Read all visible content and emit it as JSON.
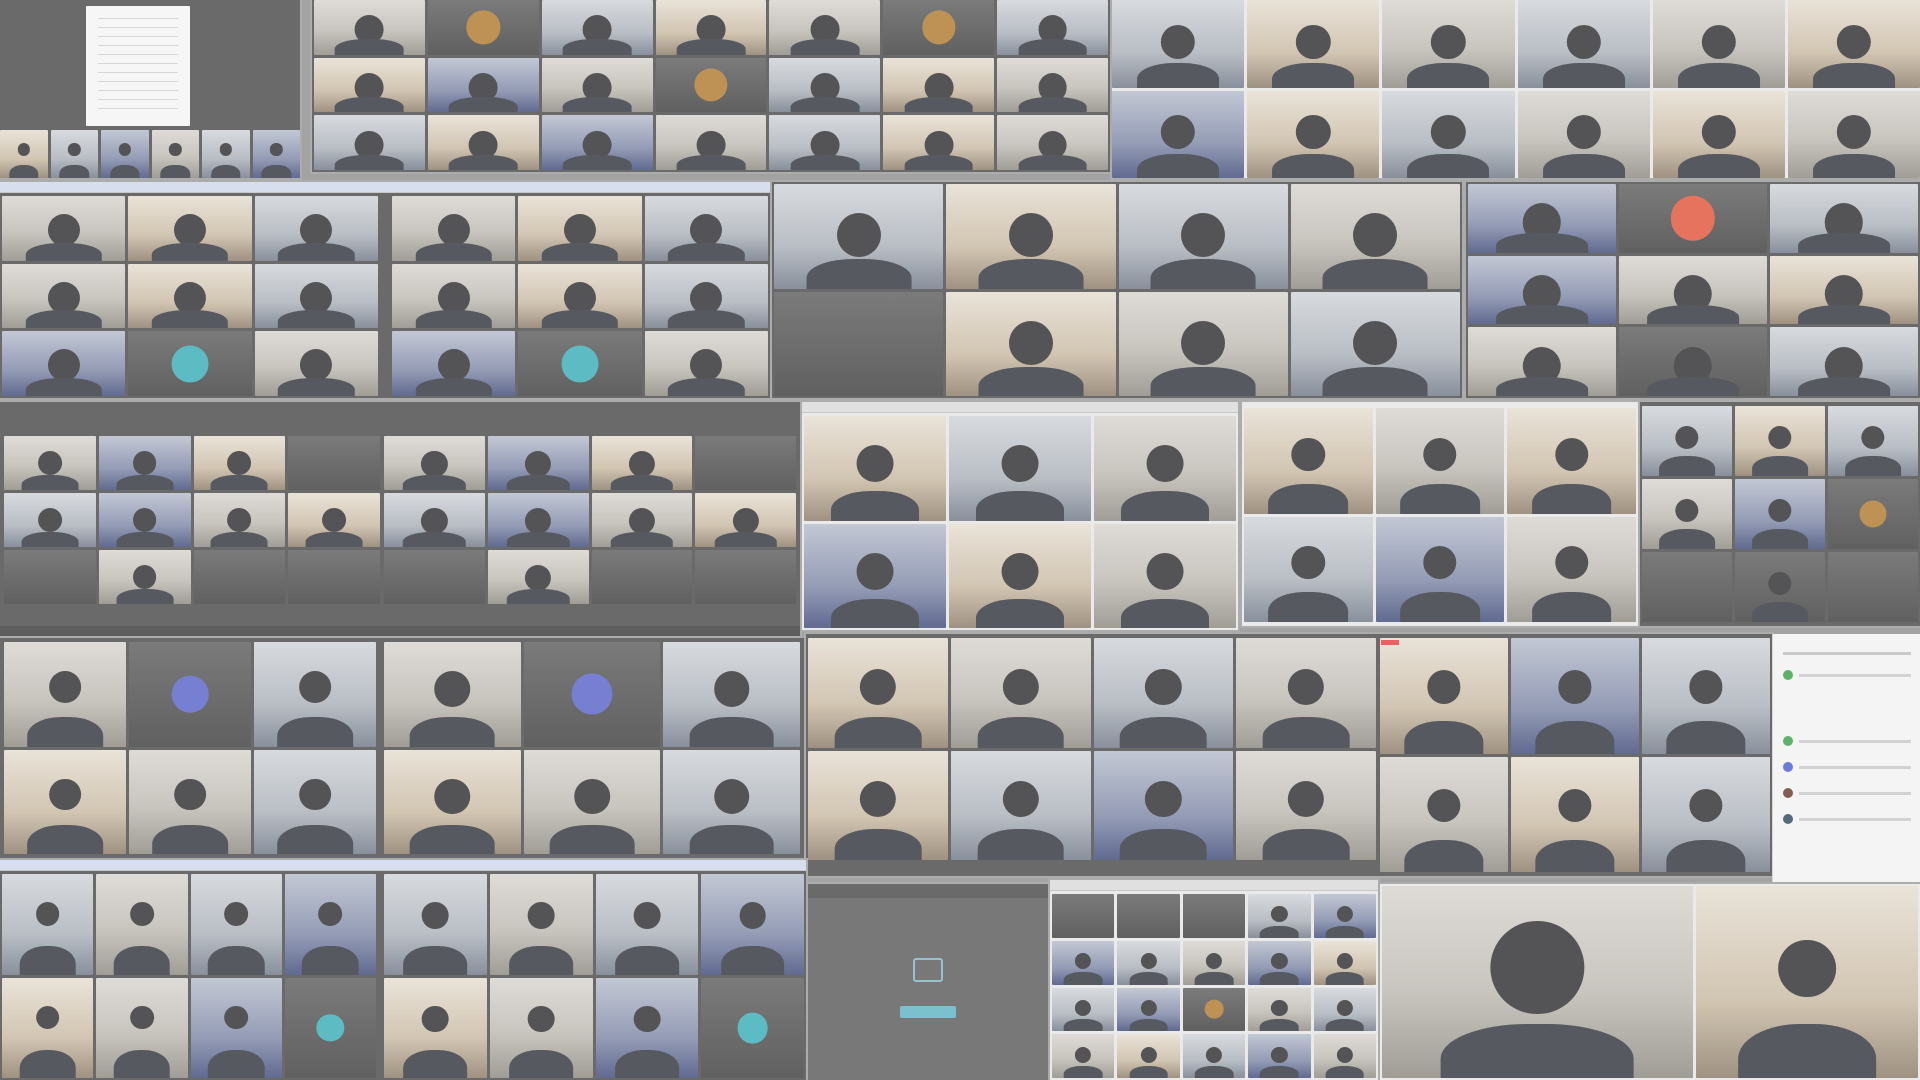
{
  "collage": {
    "description_visible": "",
    "placeholder_labels": [
      "",
      ""
    ],
    "colors": {
      "background": "#8e8e8e",
      "window_dark": "#4a4a4a",
      "avatar_teal": "#3aaeb6",
      "avatar_blue": "#5a63c8",
      "avatar_orange": "#e0553a",
      "share_button": "#5fb2c3",
      "panel_bg": "#f2f2f2",
      "status_green": "#3aa14a",
      "status_blue": "#4a5fd0",
      "status_brown": "#6a3a2a",
      "status_dark": "#2f4a5a"
    },
    "icons": [
      "video-participant-icon",
      "screen-share-icon",
      "avatar-initial-icon"
    ]
  }
}
